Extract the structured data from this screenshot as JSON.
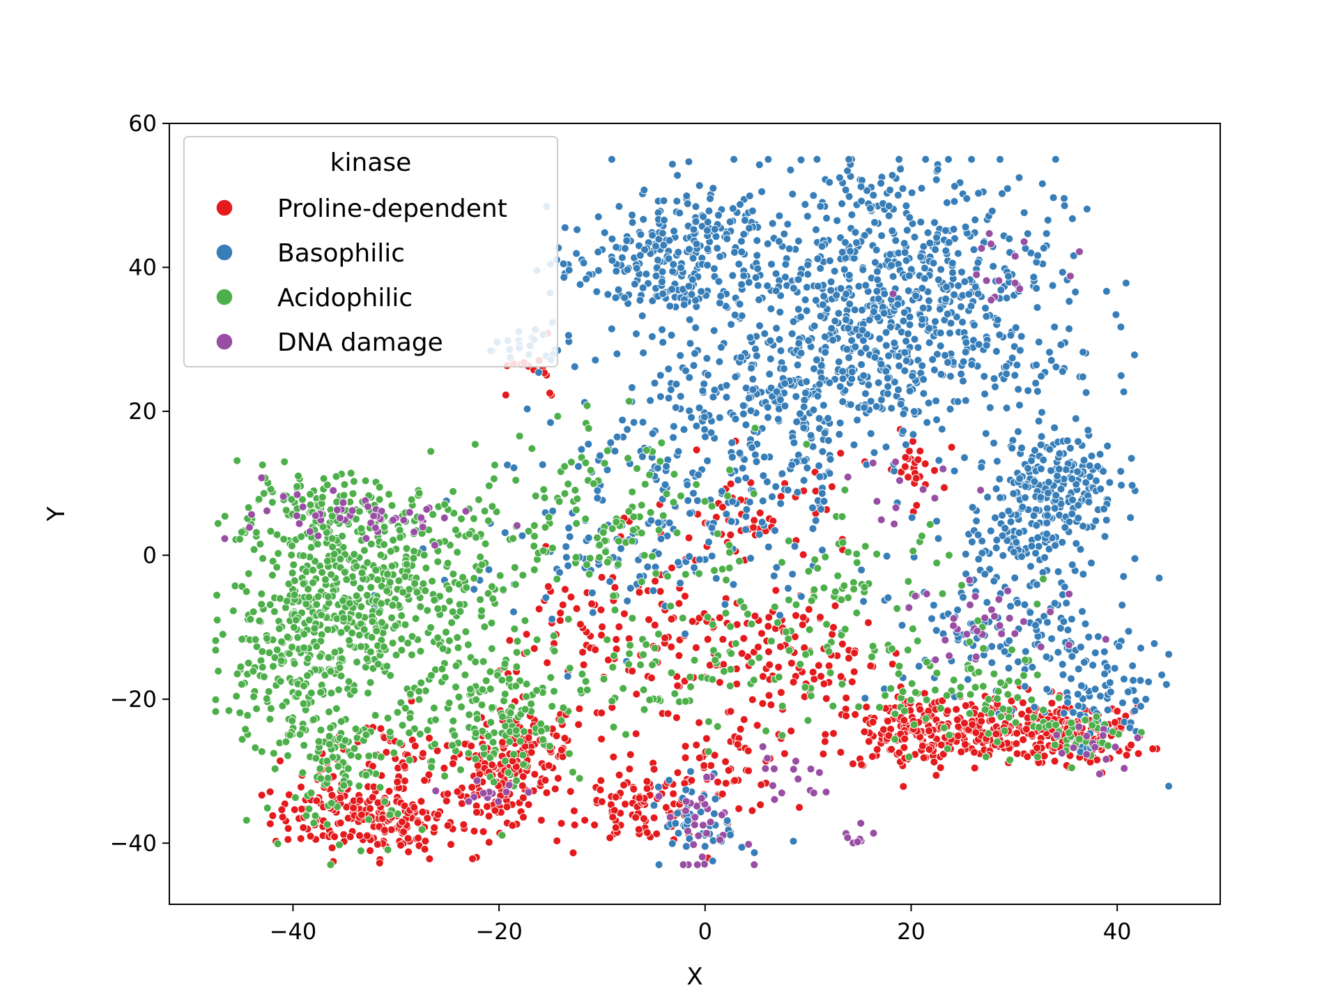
{
  "chart_data": {
    "type": "scatter",
    "title": "",
    "xlabel": "X",
    "ylabel": "Y",
    "xlim": [
      -52,
      50
    ],
    "ylim": [
      -48.5,
      60
    ],
    "xticks": [
      -40,
      -20,
      0,
      20,
      40
    ],
    "yticks": [
      -40,
      -20,
      0,
      20,
      40,
      60
    ],
    "xtick_labels": [
      "−40",
      "−20",
      "0",
      "20",
      "40"
    ],
    "ytick_labels": [
      "−40",
      "−20",
      "0",
      "20",
      "40",
      "60"
    ],
    "grid": false,
    "legend": {
      "title": "kinase",
      "placement": "upper-left",
      "entries": [
        "Proline-dependent",
        "Basophilic",
        "Acidophilic",
        "DNA damage"
      ]
    },
    "series": [
      {
        "name": "Proline-dependent",
        "color": "#e41a1c",
        "clusters": [
          {
            "x": -35,
            "y": -36,
            "sx": 3.5,
            "sy": 2.5,
            "n": 130
          },
          {
            "x": -29,
            "y": -37,
            "sx": 2.5,
            "sy": 2.5,
            "n": 80
          },
          {
            "x": -20,
            "y": -32,
            "sx": 2.5,
            "sy": 3,
            "n": 120
          },
          {
            "x": -17,
            "y": -26,
            "sx": 3,
            "sy": 3,
            "n": 70
          },
          {
            "x": -6,
            "y": -35,
            "sx": 3,
            "sy": 2.5,
            "n": 90
          },
          {
            "x": 2,
            "y": -30,
            "sx": 3,
            "sy": 3,
            "n": 50
          },
          {
            "x": 20,
            "y": -25,
            "sx": 4,
            "sy": 2.5,
            "n": 150
          },
          {
            "x": 28,
            "y": -24,
            "sx": 4,
            "sy": 2.5,
            "n": 170
          },
          {
            "x": 37,
            "y": -25,
            "sx": 3,
            "sy": 2,
            "n": 110
          },
          {
            "x": 20,
            "y": 12,
            "sx": 1.5,
            "sy": 2.5,
            "n": 30
          },
          {
            "x": 10,
            "y": -15,
            "sx": 5,
            "sy": 4,
            "n": 80
          },
          {
            "x": 0,
            "y": -15,
            "sx": 8,
            "sy": 6,
            "n": 80
          },
          {
            "x": -10,
            "y": -10,
            "sx": 5,
            "sy": 5,
            "n": 70
          },
          {
            "x": 5,
            "y": 5,
            "sx": 5,
            "sy": 4,
            "n": 60
          },
          {
            "x": -17,
            "y": 25,
            "sx": 2,
            "sy": 2,
            "n": 15
          },
          {
            "x": -30,
            "y": -28,
            "sx": 5,
            "sy": 3,
            "n": 60
          }
        ]
      },
      {
        "name": "Basophilic",
        "color": "#377eb8",
        "clusters": [
          {
            "x": 18,
            "y": 40,
            "sx": 8,
            "sy": 8,
            "n": 520
          },
          {
            "x": 18,
            "y": 28,
            "sx": 9,
            "sy": 5,
            "n": 260
          },
          {
            "x": -5,
            "y": 40,
            "sx": 5,
            "sy": 4,
            "n": 200
          },
          {
            "x": 0,
            "y": 47,
            "sx": 3,
            "sy": 2,
            "n": 60
          },
          {
            "x": 34,
            "y": 10,
            "sx": 3,
            "sy": 4,
            "n": 220
          },
          {
            "x": 30,
            "y": 2,
            "sx": 2.5,
            "sy": 2,
            "n": 60
          },
          {
            "x": 8,
            "y": 20,
            "sx": 7,
            "sy": 6,
            "n": 200
          },
          {
            "x": 0,
            "y": 10,
            "sx": 10,
            "sy": 8,
            "n": 180
          },
          {
            "x": 30,
            "y": -10,
            "sx": 6,
            "sy": 5,
            "n": 140
          },
          {
            "x": 38,
            "y": -20,
            "sx": 3,
            "sy": 4,
            "n": 80
          },
          {
            "x": 0,
            "y": -37,
            "sx": 2,
            "sy": 3,
            "n": 50
          },
          {
            "x": -10,
            "y": 0,
            "sx": 8,
            "sy": 6,
            "n": 80
          },
          {
            "x": -17,
            "y": 29,
            "sx": 2,
            "sy": 1.5,
            "n": 25
          }
        ]
      },
      {
        "name": "Acidophilic",
        "color": "#4daf4a",
        "clusters": [
          {
            "x": -32,
            "y": -5,
            "sx": 6,
            "sy": 6,
            "n": 450
          },
          {
            "x": -40,
            "y": -15,
            "sx": 4,
            "sy": 6,
            "n": 180
          },
          {
            "x": -38,
            "y": 6,
            "sx": 5,
            "sy": 2.5,
            "n": 120
          },
          {
            "x": -35,
            "y": -28,
            "sx": 4,
            "sy": 5,
            "n": 120
          },
          {
            "x": -20,
            "y": -22,
            "sx": 4,
            "sy": 5,
            "n": 150
          },
          {
            "x": -10,
            "y": 5,
            "sx": 8,
            "sy": 6,
            "n": 150
          },
          {
            "x": 0,
            "y": -15,
            "sx": 8,
            "sy": 5,
            "n": 100
          },
          {
            "x": 15,
            "y": -5,
            "sx": 5,
            "sy": 5,
            "n": 60
          },
          {
            "x": 25,
            "y": -20,
            "sx": 6,
            "sy": 4,
            "n": 80
          },
          {
            "x": 36,
            "y": -25,
            "sx": 3,
            "sy": 2,
            "n": 40
          }
        ]
      },
      {
        "name": "DNA damage",
        "color": "#984ea3",
        "clusters": [
          {
            "x": -29,
            "y": 4,
            "sx": 3,
            "sy": 1.5,
            "n": 25
          },
          {
            "x": -40,
            "y": 6,
            "sx": 4,
            "sy": 2,
            "n": 25
          },
          {
            "x": 0,
            "y": -38,
            "sx": 2,
            "sy": 3,
            "n": 30
          },
          {
            "x": 8,
            "y": -30,
            "sx": 2,
            "sy": 2,
            "n": 15
          },
          {
            "x": 28,
            "y": -10,
            "sx": 5,
            "sy": 3,
            "n": 35
          },
          {
            "x": 38,
            "y": -26,
            "sx": 2,
            "sy": 2,
            "n": 15
          },
          {
            "x": 20,
            "y": 10,
            "sx": 3,
            "sy": 3,
            "n": 12
          },
          {
            "x": 28,
            "y": 40,
            "sx": 5,
            "sy": 3,
            "n": 15
          },
          {
            "x": -20,
            "y": -33,
            "sx": 2,
            "sy": 1,
            "n": 12
          },
          {
            "x": 15,
            "y": -39,
            "sx": 1,
            "sy": 1,
            "n": 8
          }
        ]
      }
    ]
  }
}
